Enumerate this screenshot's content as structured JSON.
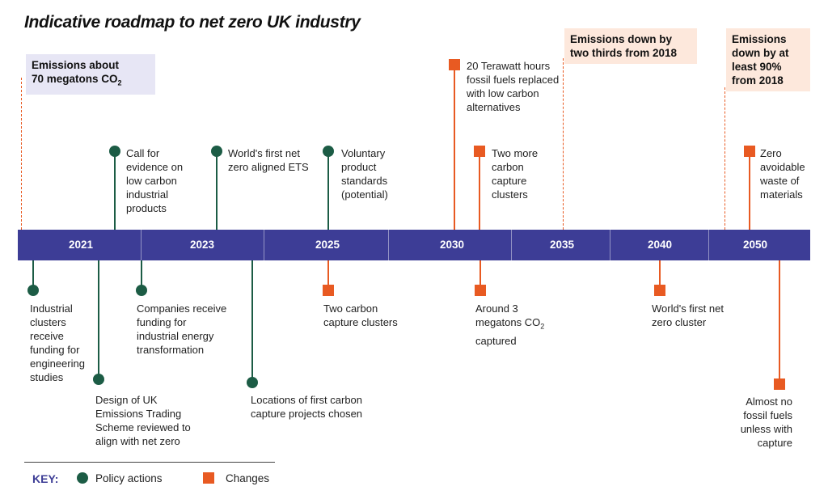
{
  "title": "Indicative roadmap to net zero UK industry",
  "colors": {
    "bar": "#3d3d96",
    "policy": "#1c5c45",
    "change": "#e85a22",
    "callout_lav": "#e7e6f5",
    "callout_peach": "#fde8dc"
  },
  "callouts": {
    "emissions_2021_pre": "Emissions about",
    "emissions_2021_line2": "70 megatons CO",
    "emissions_2021_sub": "2",
    "emissions_2035": "Emissions down by two thirds from 2018",
    "emissions_2050": "Emissions down by at least 90% from 2018"
  },
  "years": [
    "2021",
    "2023",
    "2025",
    "2030",
    "2035",
    "2040",
    "2050"
  ],
  "events": {
    "call_for_evidence": "Call for evidence on low carbon industrial products",
    "ets": "World's first net zero aligned ETS",
    "voluntary": "Voluntary product standards (potential)",
    "terawatt": "20 Terawatt hours fossil fuels replaced with low carbon alternatives",
    "two_more": "Two more carbon capture clusters",
    "zero_waste": "Zero avoidable waste of materials",
    "industrial_clusters": "Industrial clusters receive funding for engineering studies",
    "design_ets": "Design of UK Emissions Trading Scheme reviewed to align with net zero",
    "companies_funding": "Companies receive funding for industrial energy transformation",
    "locations": "Locations of first carbon capture projects chosen",
    "two_carbon": "Two carbon capture clusters",
    "around3_pre": "Around 3 megatons CO",
    "around3_sub": "2",
    "around3_post": "captured",
    "first_net_zero": "World's first net zero cluster",
    "almost_no": "Almost no fossil fuels unless with capture"
  },
  "key": {
    "label": "KEY:",
    "policy": "Policy actions",
    "changes": "Changes"
  }
}
